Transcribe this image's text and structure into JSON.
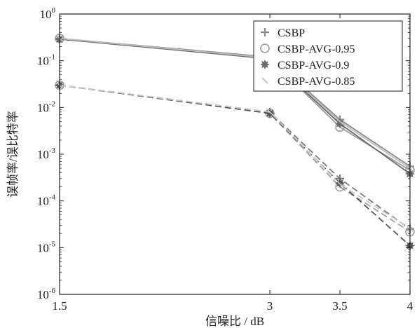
{
  "chart_data": {
    "type": "line",
    "title": "",
    "xlabel": "信噪比 / dB",
    "ylabel": "误帧率/误比特率",
    "x": [
      1.5,
      3,
      3.5,
      4
    ],
    "xlim": [
      1.5,
      4
    ],
    "ylim": [
      1e-06,
      1
    ],
    "yscale": "log",
    "xticks": [
      "1.5",
      "3",
      "3.5",
      "4"
    ],
    "yticks": [
      {
        "base": "10",
        "exp": "0",
        "value": 1
      },
      {
        "base": "10",
        "exp": "-1",
        "value": 0.1
      },
      {
        "base": "10",
        "exp": "-2",
        "value": 0.01
      },
      {
        "base": "10",
        "exp": "-3",
        "value": 0.001
      },
      {
        "base": "10",
        "exp": "-4",
        "value": 0.0001
      },
      {
        "base": "10",
        "exp": "-5",
        "value": 1e-05
      },
      {
        "base": "10",
        "exp": "-6",
        "value": 1e-06
      }
    ],
    "grid": false,
    "legend_position": "top-right",
    "series": [
      {
        "name": "CSBP",
        "marker": "cross",
        "color": "#8a8a8a",
        "metric": "frame",
        "line": "solid",
        "values": [
          0.3,
          0.12,
          0.0055,
          0.00055
        ]
      },
      {
        "name": "CSBP-AVG-0.95",
        "marker": "circle",
        "color": "#9a9a9a",
        "metric": "frame",
        "line": "solid",
        "values": [
          0.3,
          0.11,
          0.0038,
          0.00045
        ]
      },
      {
        "name": "CSBP-AVG-0.9",
        "marker": "star",
        "color": "#6a6a6a",
        "metric": "frame",
        "line": "solid",
        "values": [
          0.29,
          0.11,
          0.0045,
          0.00038
        ]
      },
      {
        "name": "CSBP-AVG-0.85",
        "marker": "tick",
        "color": "#bdbdbd",
        "metric": "frame",
        "line": "solid",
        "values": [
          0.3,
          0.115,
          0.005,
          0.0005
        ]
      },
      {
        "name": "",
        "marker": "cross",
        "color": "#7a7a7a",
        "metric": "bit",
        "line": "dashed",
        "values": [
          0.03,
          0.008,
          0.0003,
          2.5e-05
        ]
      },
      {
        "name": "",
        "marker": "circle",
        "color": "#a0a0a0",
        "metric": "bit",
        "line": "dashed",
        "values": [
          0.03,
          0.0075,
          0.0002,
          2.2e-05
        ]
      },
      {
        "name": "",
        "marker": "star",
        "color": "#555555",
        "metric": "bit",
        "line": "dashed",
        "values": [
          0.03,
          0.0075,
          0.00024,
          1.1e-05
        ]
      },
      {
        "name": "",
        "marker": "tick",
        "color": "#c8c8c8",
        "metric": "bit",
        "line": "dashed",
        "values": [
          0.03,
          0.008,
          0.00023,
          2.6e-05
        ]
      }
    ]
  }
}
